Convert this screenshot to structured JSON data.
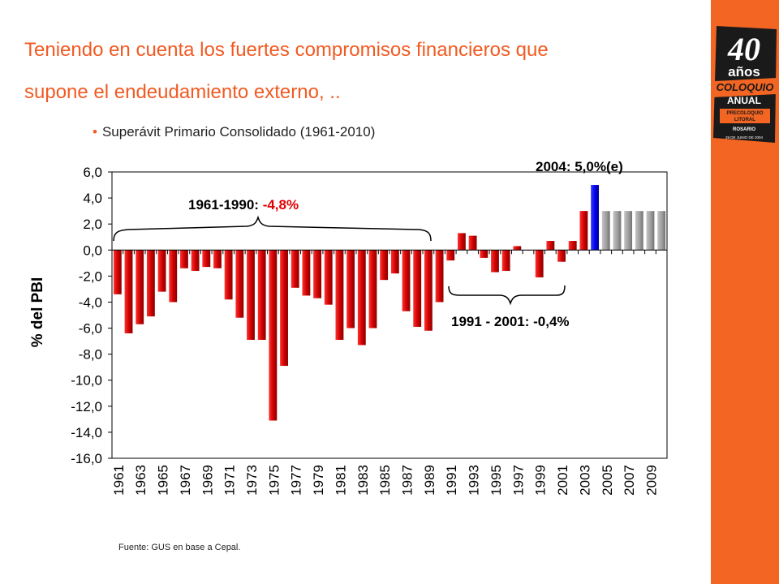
{
  "header": {
    "title_line1": "Teniendo en cuenta los fuertes compromisos financieros que",
    "title_line2": "supone el endeudamiento externo,  .."
  },
  "subtitle": "Superávit Primario Consolidado (1961-2010)",
  "source": "Fuente: GUS en base a Cepal.",
  "logo": {
    "number": "40",
    "word1": "años",
    "word2": "COLOQUIO",
    "word3": "ANUAL",
    "word4": "PRECOLOQUIO",
    "word5": "LITORAL",
    "word6": "ROSARIO",
    "word7": "29 DE JUNIO DE 2004"
  },
  "colors": {
    "accent": "#f26522",
    "bar_red": "#cc0000",
    "bar_blue": "#0000ee",
    "bar_gray": "#9e9e9e"
  },
  "chart_data": {
    "type": "bar",
    "ylabel": "% del PBI",
    "ylim": [
      -16.0,
      6.0
    ],
    "yticks": [
      "6,0",
      "4,0",
      "2,0",
      "0,0",
      "-2,0",
      "-4,0",
      "-6,0",
      "-8,0",
      "-10,0",
      "-12,0",
      "-14,0",
      "-16,0"
    ],
    "grid": false,
    "categories": [
      "1961",
      "1962",
      "1963",
      "1964",
      "1965",
      "1966",
      "1967",
      "1968",
      "1969",
      "1970",
      "1971",
      "1972",
      "1973",
      "1974",
      "1975",
      "1976",
      "1977",
      "1978",
      "1979",
      "1980",
      "1981",
      "1982",
      "1983",
      "1984",
      "1985",
      "1986",
      "1987",
      "1988",
      "1989",
      "1990",
      "1991",
      "1992",
      "1993",
      "1994",
      "1995",
      "1996",
      "1997",
      "1998",
      "1999",
      "2000",
      "2001",
      "2002",
      "2003",
      "2004",
      "2005",
      "2006",
      "2007",
      "2008",
      "2009",
      "2010"
    ],
    "xtick_labels": [
      "1961",
      "1963",
      "1965",
      "1967",
      "1969",
      "1971",
      "1973",
      "1975",
      "1977",
      "1979",
      "1981",
      "1983",
      "1985",
      "1987",
      "1989",
      "1991",
      "1993",
      "1995",
      "1997",
      "1999",
      "2001",
      "2003",
      "2005",
      "2007",
      "2009"
    ],
    "values": [
      -3.4,
      -6.4,
      -5.7,
      -5.1,
      -3.2,
      -4.0,
      -1.4,
      -1.6,
      -1.3,
      -1.4,
      -3.8,
      -5.2,
      -6.9,
      -6.9,
      -13.1,
      -8.9,
      -2.9,
      -3.5,
      -3.7,
      -4.2,
      -6.9,
      -6.0,
      -7.3,
      -6.0,
      -2.3,
      -1.8,
      -4.7,
      -5.9,
      -6.2,
      -4.0,
      -0.8,
      1.3,
      1.1,
      -0.6,
      -1.7,
      -1.6,
      0.3,
      0.0,
      -2.1,
      0.7,
      -0.9,
      0.7,
      3.0,
      5.0,
      3.0,
      3.0,
      3.0,
      3.0,
      3.0,
      3.0
    ],
    "bar_colors": [
      "red",
      "red",
      "red",
      "red",
      "red",
      "red",
      "red",
      "red",
      "red",
      "red",
      "red",
      "red",
      "red",
      "red",
      "red",
      "red",
      "red",
      "red",
      "red",
      "red",
      "red",
      "red",
      "red",
      "red",
      "red",
      "red",
      "red",
      "red",
      "red",
      "red",
      "red",
      "red",
      "red",
      "red",
      "red",
      "red",
      "red",
      "red",
      "red",
      "red",
      "red",
      "red",
      "red",
      "blue",
      "gray",
      "gray",
      "gray",
      "gray",
      "gray",
      "gray"
    ],
    "annotations": {
      "period1_label": "1961-1990: ",
      "period1_value": "-4,8%",
      "period2": "1991 - 2001: -0,4%",
      "year2004_label": "2004: 5,0%",
      "year2004_suffix": "(e)"
    }
  }
}
